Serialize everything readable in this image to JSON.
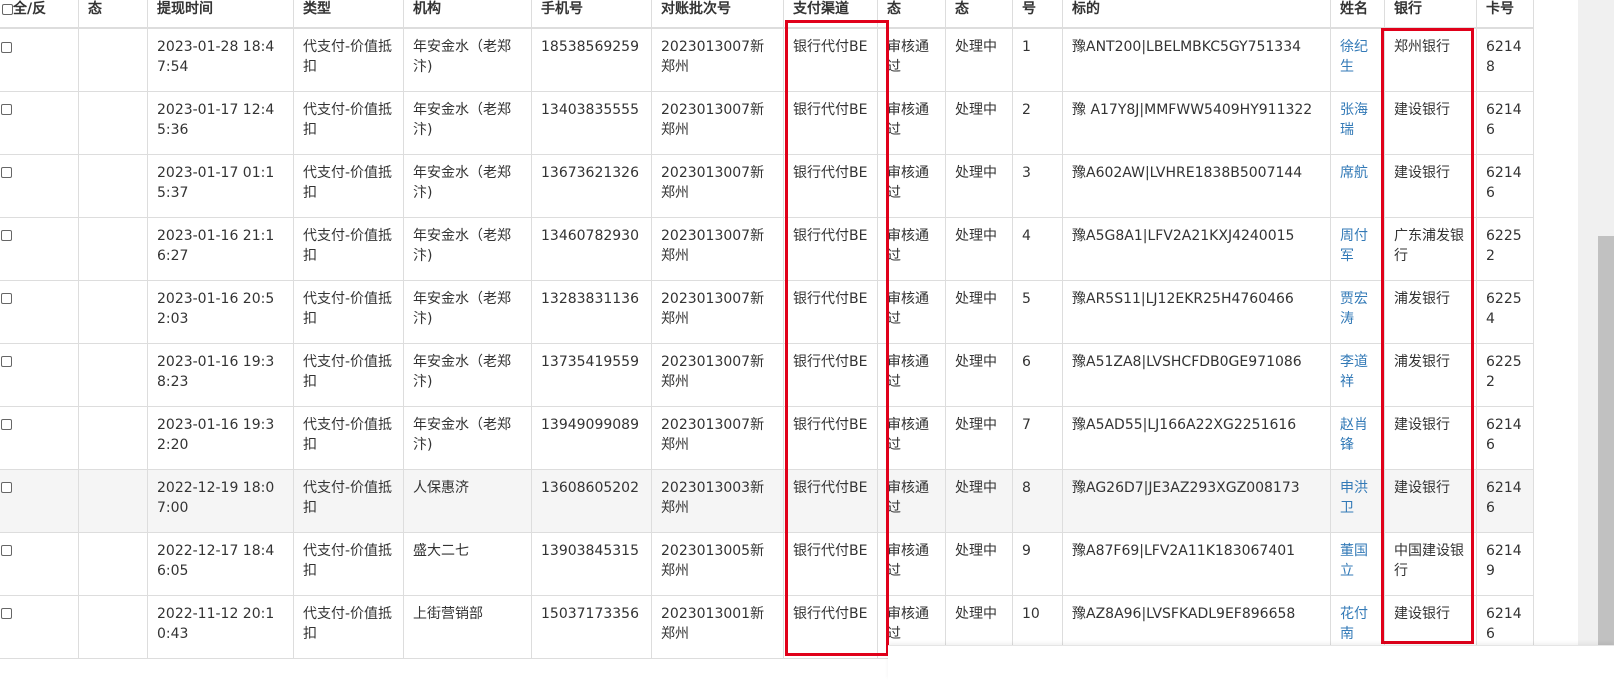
{
  "headers": [
    "全/反",
    "态",
    "提现时间",
    "类型",
    "机构",
    "手机号",
    "对账批次号",
    "支付渠道",
    "态",
    "态",
    "号",
    "标的",
    "姓名",
    "银行",
    "卡号"
  ],
  "rows": [
    {
      "time": "2023-01-28 18:47:54",
      "type": "代支付-价值抵扣",
      "org": "年安金水（老郑汴)",
      "phone": "18538569259",
      "batch": "2023013007新郑州",
      "channel": "银行代付BE",
      "audit": "审核通过",
      "status": "处理中",
      "no": "1",
      "target": "豫ANT200|LBELMBKC5GY751334",
      "name": "徐纪生",
      "bank": "郑州银行",
      "card": "62148"
    },
    {
      "time": "2023-01-17 12:45:36",
      "type": "代支付-价值抵扣",
      "org": "年安金水（老郑汴)",
      "phone": "13403835555",
      "batch": "2023013007新郑州",
      "channel": "银行代付BE",
      "audit": "审核通过",
      "status": "处理中",
      "no": "2",
      "target": "豫 A17Y8J|MMFWW5409HY911322",
      "name": "张海瑞",
      "bank": "建设银行",
      "card": "62146"
    },
    {
      "time": "2023-01-17 01:15:37",
      "type": "代支付-价值抵扣",
      "org": "年安金水（老郑汴)",
      "phone": "13673621326",
      "batch": "2023013007新郑州",
      "channel": "银行代付BE",
      "audit": "审核通过",
      "status": "处理中",
      "no": "3",
      "target": "豫A602AW|LVHRE1838B5007144",
      "name": "席航",
      "bank": "建设银行",
      "card": "62146"
    },
    {
      "time": "2023-01-16 21:16:27",
      "type": "代支付-价值抵扣",
      "org": "年安金水（老郑汴)",
      "phone": "13460782930",
      "batch": "2023013007新郑州",
      "channel": "银行代付BE",
      "audit": "审核通过",
      "status": "处理中",
      "no": "4",
      "target": "豫A5G8A1|LFV2A21KXJ4240015",
      "name": "周付军",
      "bank": "广东浦发银行",
      "card": "62252"
    },
    {
      "time": "2023-01-16 20:52:03",
      "type": "代支付-价值抵扣",
      "org": "年安金水（老郑汴)",
      "phone": "13283831136",
      "batch": "2023013007新郑州",
      "channel": "银行代付BE",
      "audit": "审核通过",
      "status": "处理中",
      "no": "5",
      "target": "豫AR5S11|LJ12EKR25H4760466",
      "name": "贾宏涛",
      "bank": "浦发银行",
      "card": "62254"
    },
    {
      "time": "2023-01-16 19:38:23",
      "type": "代支付-价值抵扣",
      "org": "年安金水（老郑汴)",
      "phone": "13735419559",
      "batch": "2023013007新郑州",
      "channel": "银行代付BE",
      "audit": "审核通过",
      "status": "处理中",
      "no": "6",
      "target": "豫A51ZA8|LVSHCFDB0GE971086",
      "name": "李道祥",
      "bank": "浦发银行",
      "card": "62252"
    },
    {
      "time": "2023-01-16 19:32:20",
      "type": "代支付-价值抵扣",
      "org": "年安金水（老郑汴)",
      "phone": "13949099089",
      "batch": "2023013007新郑州",
      "channel": "银行代付BE",
      "audit": "审核通过",
      "status": "处理中",
      "no": "7",
      "target": "豫A5AD55|LJ166A22XG2251616",
      "name": "赵肖锋",
      "bank": "建设银行",
      "card": "62146"
    },
    {
      "time": "2022-12-19 18:07:00",
      "type": "代支付-价值抵扣",
      "org": "人保惠济",
      "phone": "13608605202",
      "batch": "2023013003新郑州",
      "channel": "银行代付BE",
      "audit": "审核通过",
      "status": "处理中",
      "no": "8",
      "target": "豫AG26D7|JE3AZ293XGZ008173",
      "name": "申洪卫",
      "bank": "建设银行",
      "card": "62146"
    },
    {
      "time": "2022-12-17 18:46:05",
      "type": "代支付-价值抵扣",
      "org": "盛大二七",
      "phone": "13903845315",
      "batch": "2023013005新郑州",
      "channel": "银行代付BE",
      "audit": "审核通过",
      "status": "处理中",
      "no": "9",
      "target": "豫A87F69|LFV2A11K183067401",
      "name": "董国立",
      "bank": "中国建设银行",
      "card": "62149"
    },
    {
      "time": "2022-11-12 20:10:43",
      "type": "代支付-价值抵扣",
      "org": "上街营销部",
      "phone": "15037173356",
      "batch": "2023013001新郑州",
      "channel": "银行代付BE",
      "audit": "审核通过",
      "status": "处理中",
      "no": "10",
      "target": "豫AZ8A96|LVSFKADL9EF896658",
      "name": "花付南",
      "bank": "建设银行",
      "card": "62146"
    }
  ],
  "colors": {
    "highlight": "#e0001a",
    "link": "#337ab7"
  }
}
